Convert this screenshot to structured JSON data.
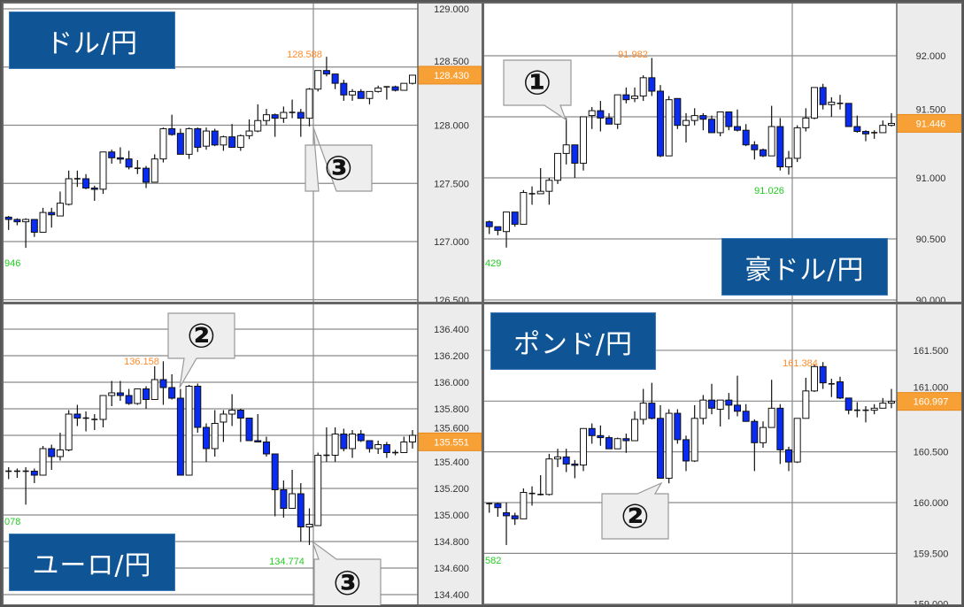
{
  "colors": {
    "bear": "#0a2cf0",
    "bull": "#ffffff",
    "high_label": "#ff8a2a",
    "low_label": "#22cc22",
    "current_tag": "#f7a035",
    "title_bg": "#0f5494",
    "axis_bg": "#ececec"
  },
  "chart_data": [
    {
      "type": "candlestick",
      "title": "ドル/円",
      "y_ticks": [
        "129.000",
        "128.500",
        "128.000",
        "127.500",
        "127.000",
        "126.500"
      ],
      "ylim": [
        126.5,
        129.0
      ],
      "grid": true,
      "high_label": "128.588",
      "low_labels": [
        "946"
      ],
      "current_price": "128.430",
      "callouts": [
        "③"
      ],
      "candles_ohlc": [
        [
          127.21,
          127.22,
          127.1,
          127.19
        ],
        [
          127.19,
          127.2,
          127.14,
          127.17
        ],
        [
          127.17,
          127.2,
          126.946,
          127.19
        ],
        [
          127.19,
          127.19,
          127.04,
          127.08
        ],
        [
          127.08,
          127.29,
          127.08,
          127.25
        ],
        [
          127.25,
          127.29,
          127.12,
          127.23
        ],
        [
          127.22,
          127.43,
          127.22,
          127.33
        ],
        [
          127.32,
          127.61,
          127.31,
          127.54
        ],
        [
          127.54,
          127.61,
          127.47,
          127.54
        ],
        [
          127.54,
          127.58,
          127.45,
          127.46
        ],
        [
          127.46,
          127.48,
          127.35,
          127.45
        ],
        [
          127.45,
          127.77,
          127.41,
          127.77
        ],
        [
          127.77,
          127.79,
          127.67,
          127.72
        ],
        [
          127.72,
          127.81,
          127.67,
          127.71
        ],
        [
          127.71,
          127.78,
          127.62,
          127.64
        ],
        [
          127.63,
          127.7,
          127.58,
          127.63
        ],
        [
          127.63,
          127.65,
          127.46,
          127.51
        ],
        [
          127.51,
          127.75,
          127.51,
          127.71
        ],
        [
          127.71,
          127.98,
          127.68,
          127.97
        ],
        [
          127.97,
          128.09,
          127.91,
          127.92
        ],
        [
          127.93,
          127.97,
          127.75,
          127.75
        ],
        [
          127.75,
          127.98,
          127.71,
          127.97
        ],
        [
          127.97,
          127.98,
          127.77,
          127.81
        ],
        [
          127.82,
          127.98,
          127.79,
          127.95
        ],
        [
          127.95,
          127.97,
          127.82,
          127.83
        ],
        [
          127.83,
          127.91,
          127.78,
          127.9
        ],
        [
          127.9,
          128.01,
          127.81,
          127.81
        ],
        [
          127.81,
          127.92,
          127.78,
          127.91
        ],
        [
          127.91,
          128.05,
          127.88,
          127.95
        ],
        [
          127.95,
          128.18,
          127.94,
          128.04
        ],
        [
          128.04,
          128.14,
          128.0,
          128.09
        ],
        [
          128.09,
          128.1,
          127.9,
          128.06
        ],
        [
          128.06,
          128.16,
          128.02,
          128.11
        ],
        [
          128.11,
          128.22,
          128.06,
          128.11
        ],
        [
          128.11,
          128.14,
          127.9,
          128.06
        ],
        [
          128.06,
          128.32,
          127.99,
          128.31
        ],
        [
          128.31,
          128.47,
          128.29,
          128.47
        ],
        [
          128.47,
          128.588,
          128.42,
          128.44
        ],
        [
          128.44,
          128.44,
          128.31,
          128.36
        ],
        [
          128.36,
          128.39,
          128.21,
          128.26
        ],
        [
          128.26,
          128.31,
          128.21,
          128.29
        ],
        [
          128.29,
          128.31,
          128.23,
          128.23
        ],
        [
          128.23,
          128.29,
          128.18,
          128.29
        ],
        [
          128.29,
          128.34,
          128.28,
          128.32
        ],
        [
          128.33,
          128.33,
          128.22,
          128.33
        ],
        [
          128.33,
          128.34,
          128.29,
          128.3
        ],
        [
          128.3,
          128.36,
          128.3,
          128.36
        ],
        [
          128.36,
          128.43,
          128.35,
          128.43
        ]
      ]
    },
    {
      "type": "candlestick",
      "title": "豪ドル/円",
      "y_ticks": [
        "92.000",
        "91.500",
        "91.000",
        "90.500",
        "90.000"
      ],
      "ylim": [
        90.0,
        92.2
      ],
      "grid": true,
      "high_label": "91.982",
      "low_labels": [
        "429",
        "91.026"
      ],
      "current_price": "91.446",
      "callouts": [
        "①"
      ],
      "candles_ohlc": [
        [
          90.64,
          90.65,
          90.54,
          90.6
        ],
        [
          90.6,
          90.6,
          90.53,
          90.57
        ],
        [
          90.56,
          90.72,
          90.429,
          90.72
        ],
        [
          90.72,
          90.72,
          90.6,
          90.62
        ],
        [
          90.62,
          90.9,
          90.62,
          90.88
        ],
        [
          90.87,
          90.93,
          90.78,
          90.87
        ],
        [
          90.87,
          91.08,
          90.87,
          90.89
        ],
        [
          90.89,
          91.0,
          90.78,
          90.98
        ],
        [
          90.98,
          91.2,
          90.95,
          91.2
        ],
        [
          91.2,
          91.49,
          91.11,
          91.27
        ],
        [
          91.27,
          91.27,
          91.0,
          91.12
        ],
        [
          91.12,
          91.5,
          91.06,
          91.5
        ],
        [
          91.51,
          91.58,
          91.4,
          91.55
        ],
        [
          91.55,
          91.63,
          91.38,
          91.49
        ],
        [
          91.49,
          91.53,
          91.44,
          91.44
        ],
        [
          91.44,
          91.68,
          91.4,
          91.68
        ],
        [
          91.68,
          91.74,
          91.61,
          91.64
        ],
        [
          91.65,
          91.74,
          91.62,
          91.67
        ],
        [
          91.67,
          91.84,
          91.63,
          91.82
        ],
        [
          91.82,
          91.982,
          91.67,
          91.71
        ],
        [
          91.71,
          91.76,
          91.17,
          91.18
        ],
        [
          91.18,
          91.67,
          91.18,
          91.64
        ],
        [
          91.65,
          91.65,
          91.4,
          91.43
        ],
        [
          91.43,
          91.53,
          91.29,
          91.47
        ],
        [
          91.47,
          91.57,
          91.43,
          91.51
        ],
        [
          91.51,
          91.53,
          91.39,
          91.48
        ],
        [
          91.48,
          91.51,
          91.37,
          91.37
        ],
        [
          91.37,
          91.54,
          91.34,
          91.54
        ],
        [
          91.54,
          91.54,
          91.39,
          91.42
        ],
        [
          91.42,
          91.56,
          91.38,
          91.39
        ],
        [
          91.39,
          91.44,
          91.26,
          91.27
        ],
        [
          91.27,
          91.3,
          91.15,
          91.23
        ],
        [
          91.23,
          91.24,
          91.17,
          91.18
        ],
        [
          91.18,
          91.59,
          91.18,
          91.42
        ],
        [
          91.42,
          91.49,
          91.06,
          91.09
        ],
        [
          91.09,
          91.22,
          91.026,
          91.16
        ],
        [
          91.16,
          91.43,
          91.13,
          91.41
        ],
        [
          91.41,
          91.57,
          91.38,
          91.49
        ],
        [
          91.49,
          91.74,
          91.48,
          91.74
        ],
        [
          91.74,
          91.77,
          91.56,
          91.6
        ],
        [
          91.6,
          91.66,
          91.5,
          91.62
        ],
        [
          91.61,
          91.68,
          91.56,
          91.61
        ],
        [
          91.61,
          91.61,
          91.42,
          91.42
        ],
        [
          91.42,
          91.51,
          91.37,
          91.38
        ],
        [
          91.38,
          91.39,
          91.3,
          91.36
        ],
        [
          91.37,
          91.39,
          91.32,
          91.37
        ],
        [
          91.37,
          91.47,
          91.37,
          91.43
        ],
        [
          91.43,
          91.53,
          91.42,
          91.446
        ]
      ]
    },
    {
      "type": "candlestick",
      "title": "ユーロ/円",
      "y_ticks": [
        "136.400",
        "136.200",
        "136.000",
        "135.800",
        "135.600",
        "135.400",
        "135.200",
        "135.000",
        "134.800",
        "134.600",
        "134.400"
      ],
      "ylim": [
        134.4,
        136.6
      ],
      "grid": true,
      "high_label": "136.158",
      "low_labels": [
        "078",
        "134.774"
      ],
      "current_price": "135.551",
      "callouts": [
        "②",
        "③"
      ],
      "candles_ohlc": [
        [
          135.33,
          135.36,
          135.27,
          135.33
        ],
        [
          135.33,
          135.35,
          135.28,
          135.33
        ],
        [
          135.33,
          135.36,
          135.078,
          135.33
        ],
        [
          135.33,
          135.35,
          135.24,
          135.3
        ],
        [
          135.3,
          135.52,
          135.3,
          135.5
        ],
        [
          135.5,
          135.53,
          135.34,
          135.44
        ],
        [
          135.44,
          135.62,
          135.41,
          135.49
        ],
        [
          135.49,
          135.79,
          135.48,
          135.76
        ],
        [
          135.76,
          135.83,
          135.67,
          135.73
        ],
        [
          135.73,
          135.78,
          135.63,
          135.73
        ],
        [
          135.72,
          135.76,
          135.64,
          135.72
        ],
        [
          135.72,
          135.9,
          135.66,
          135.9
        ],
        [
          135.9,
          136.01,
          135.82,
          135.92
        ],
        [
          135.92,
          136.01,
          135.86,
          135.9
        ],
        [
          135.9,
          135.95,
          135.83,
          135.84
        ],
        [
          135.84,
          135.95,
          135.83,
          135.95
        ],
        [
          135.95,
          135.97,
          135.8,
          135.87
        ],
        [
          135.87,
          136.12,
          135.87,
          136.02
        ],
        [
          136.02,
          136.158,
          135.83,
          135.96
        ],
        [
          135.96,
          136.06,
          135.87,
          135.88
        ],
        [
          135.88,
          135.95,
          135.3,
          135.3
        ],
        [
          135.3,
          135.98,
          135.3,
          135.97
        ],
        [
          135.97,
          135.99,
          135.62,
          135.66
        ],
        [
          135.66,
          135.69,
          135.4,
          135.5
        ],
        [
          135.5,
          135.79,
          135.44,
          135.69
        ],
        [
          135.7,
          135.79,
          135.55,
          135.76
        ],
        [
          135.76,
          135.91,
          135.67,
          135.79
        ],
        [
          135.79,
          135.8,
          135.55,
          135.73
        ],
        [
          135.73,
          135.73,
          135.56,
          135.56
        ],
        [
          135.56,
          135.76,
          135.55,
          135.55
        ],
        [
          135.55,
          135.59,
          135.44,
          135.46
        ],
        [
          135.46,
          135.46,
          134.99,
          135.19
        ],
        [
          135.19,
          135.26,
          134.98,
          135.05
        ],
        [
          135.05,
          135.34,
          135.05,
          135.16
        ],
        [
          135.16,
          135.24,
          134.8,
          134.91
        ],
        [
          134.91,
          135.05,
          134.774,
          134.93
        ],
        [
          134.92,
          135.47,
          134.92,
          135.45
        ],
        [
          135.45,
          135.66,
          135.4,
          135.45
        ],
        [
          135.45,
          135.66,
          135.4,
          135.61
        ],
        [
          135.61,
          135.65,
          135.48,
          135.5
        ],
        [
          135.5,
          135.64,
          135.43,
          135.61
        ],
        [
          135.61,
          135.64,
          135.55,
          135.56
        ],
        [
          135.56,
          135.56,
          135.47,
          135.5
        ],
        [
          135.5,
          135.56,
          135.46,
          135.53
        ],
        [
          135.53,
          135.55,
          135.43,
          135.47
        ],
        [
          135.47,
          135.49,
          135.45,
          135.47
        ],
        [
          135.47,
          135.59,
          135.47,
          135.55
        ],
        [
          135.55,
          135.64,
          135.5,
          135.6
        ]
      ]
    },
    {
      "type": "candlestick",
      "title": "ポンド/円",
      "y_ticks": [
        "161.500",
        "161.000",
        "160.500",
        "160.000",
        "159.500",
        "159.000"
      ],
      "ylim": [
        159.0,
        161.9
      ],
      "grid": true,
      "high_label": "161.384",
      "low_labels": [
        "582"
      ],
      "current_price": "160.997",
      "callouts": [
        "②"
      ],
      "candles_ohlc": [
        [
          159.99,
          160.0,
          159.9,
          159.99
        ],
        [
          159.99,
          160.0,
          159.86,
          159.95
        ],
        [
          159.9,
          160.0,
          159.582,
          159.87
        ],
        [
          159.87,
          159.9,
          159.78,
          159.84
        ],
        [
          159.84,
          160.14,
          159.84,
          160.1
        ],
        [
          160.09,
          160.16,
          159.97,
          160.09
        ],
        [
          160.08,
          160.27,
          160.07,
          160.08
        ],
        [
          160.08,
          160.48,
          160.07,
          160.43
        ],
        [
          160.43,
          160.53,
          160.35,
          160.45
        ],
        [
          160.45,
          160.53,
          160.3,
          160.38
        ],
        [
          160.38,
          160.42,
          160.24,
          160.37
        ],
        [
          160.37,
          160.73,
          160.31,
          160.73
        ],
        [
          160.73,
          160.78,
          160.58,
          160.66
        ],
        [
          160.66,
          160.76,
          160.56,
          160.64
        ],
        [
          160.64,
          160.66,
          160.53,
          160.53
        ],
        [
          160.53,
          160.64,
          160.53,
          160.63
        ],
        [
          160.63,
          160.68,
          160.49,
          160.61
        ],
        [
          160.61,
          160.9,
          160.61,
          160.82
        ],
        [
          160.82,
          161.12,
          160.77,
          160.98
        ],
        [
          160.98,
          161.18,
          160.82,
          160.83
        ],
        [
          160.83,
          160.96,
          160.24,
          160.24
        ],
        [
          160.24,
          160.92,
          160.19,
          160.88
        ],
        [
          160.88,
          160.92,
          160.58,
          160.62
        ],
        [
          160.62,
          160.66,
          160.31,
          160.41
        ],
        [
          160.41,
          160.96,
          160.4,
          160.83
        ],
        [
          160.83,
          161.06,
          160.77,
          161.01
        ],
        [
          161.01,
          161.17,
          160.87,
          160.93
        ],
        [
          160.92,
          161.01,
          160.75,
          161.01
        ],
        [
          161.01,
          161.08,
          160.82,
          160.96
        ],
        [
          160.96,
          161.25,
          160.85,
          160.9
        ],
        [
          160.9,
          160.97,
          160.8,
          160.8
        ],
        [
          160.8,
          160.82,
          160.31,
          160.59
        ],
        [
          160.59,
          160.8,
          160.54,
          160.74
        ],
        [
          160.74,
          161.21,
          160.74,
          160.93
        ],
        [
          160.93,
          160.97,
          160.38,
          160.52
        ],
        [
          160.52,
          160.55,
          160.31,
          160.4
        ],
        [
          160.4,
          160.83,
          160.39,
          160.83
        ],
        [
          160.83,
          161.23,
          160.83,
          161.1
        ],
        [
          161.1,
          161.36,
          161.09,
          161.34
        ],
        [
          161.34,
          161.384,
          161.12,
          161.18
        ],
        [
          161.17,
          161.22,
          161.04,
          161.17
        ],
        [
          161.19,
          161.24,
          161.02,
          161.03
        ],
        [
          161.03,
          161.03,
          160.87,
          160.91
        ],
        [
          160.91,
          160.99,
          160.84,
          160.91
        ],
        [
          160.91,
          160.95,
          160.79,
          160.91
        ],
        [
          160.91,
          160.97,
          160.87,
          160.93
        ],
        [
          160.93,
          161.03,
          160.93,
          160.98
        ],
        [
          160.98,
          161.12,
          160.93,
          160.997
        ]
      ]
    }
  ]
}
